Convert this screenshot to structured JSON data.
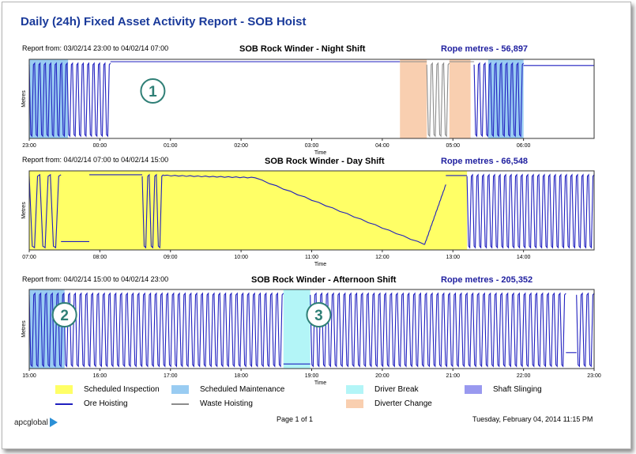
{
  "title": "Daily (24h) Fixed Asset Activity Report - SOB Hoist",
  "footer": {
    "page": "Page 1 of 1",
    "datetime": "Tuesday, February 04, 2014 11:15 PM",
    "logo": "apcglobal"
  },
  "legend": [
    {
      "label": "Scheduled Inspection",
      "kind": "fill",
      "color": "#ffff66"
    },
    {
      "label": "Scheduled Maintenance",
      "kind": "fill",
      "color": "#99ccf2"
    },
    {
      "label": "Driver Break",
      "kind": "fill",
      "color": "#b3f5f7"
    },
    {
      "label": "Shaft Slinging",
      "kind": "fill",
      "color": "#9999ef"
    },
    {
      "label": "Ore Hoisting",
      "kind": "line",
      "color": "#1f1fbf"
    },
    {
      "label": "Waste Hoisting",
      "kind": "line",
      "color": "#8c8c8c"
    },
    {
      "label": "Diverter Change",
      "kind": "fill",
      "color": "#f9cfb0"
    }
  ],
  "chart_data": [
    {
      "type": "line",
      "report_from": "Report from: 03/02/14 23:00 to 04/02/14 07:00",
      "title": "SOB Rock Winder - Night Shift",
      "rope_metres": "Rope metres - 56,897",
      "xlabel": "Time",
      "ylabel": "Metres",
      "xlim": [
        23,
        31
      ],
      "ylim": [
        0,
        1
      ],
      "x_ticks": [
        "23:00",
        "00:00",
        "01:00",
        "02:00",
        "03:00",
        "04:00",
        "05:00",
        "06:00"
      ],
      "annotation": "1",
      "bands": [
        {
          "type": "Scheduled Maintenance",
          "from": 23,
          "to": 23.55
        },
        {
          "type": "Diverter Change",
          "from": 28.25,
          "to": 28.63
        },
        {
          "type": "Diverter Change",
          "from": 28.95,
          "to": 29.25
        },
        {
          "type": "Scheduled Maintenance",
          "from": 29.5,
          "to": 30.0
        }
      ],
      "series": [
        {
          "name": "Ore Hoisting",
          "segments": [
            {
              "pattern": "cycles",
              "from": 23.0,
              "to": 24.15,
              "n": 15
            },
            {
              "pattern": "flat",
              "from": 24.15,
              "to": 28.25,
              "level": 1
            },
            {
              "pattern": "cycles",
              "from": 29.3,
              "to": 30.0,
              "n": 9
            },
            {
              "pattern": "flat",
              "from": 30.0,
              "to": 31.0,
              "level": 0.95
            }
          ]
        },
        {
          "name": "Waste Hoisting",
          "segments": [
            {
              "pattern": "flat",
              "from": 28.25,
              "to": 28.63,
              "level": 1
            },
            {
              "pattern": "cycles",
              "from": 28.63,
              "to": 28.95,
              "n": 4
            },
            {
              "pattern": "flat",
              "from": 28.95,
              "to": 29.3,
              "level": 1
            }
          ]
        }
      ]
    },
    {
      "type": "line",
      "report_from": "Report from: 04/02/14 07:00 to 04/02/14 15:00",
      "title": "SOB Rock Winder - Day Shift",
      "rope_metres": "Rope metres - 66,548",
      "xlabel": "Time",
      "ylabel": "Metres",
      "xlim": [
        7,
        15
      ],
      "ylim": [
        0,
        1
      ],
      "x_ticks": [
        "07:00",
        "08:00",
        "09:00",
        "10:00",
        "11:00",
        "12:00",
        "13:00",
        "14:00"
      ],
      "annotation": "",
      "bands": [
        {
          "type": "Scheduled Inspection",
          "from": 7.0,
          "to": 13.2
        }
      ],
      "series": [
        {
          "name": "Ore Hoisting",
          "segments": [
            {
              "pattern": "cycles",
              "from": 7.0,
              "to": 7.45,
              "n": 3
            },
            {
              "pattern": "flat",
              "from": 7.45,
              "to": 7.85,
              "level": 0.1
            },
            {
              "pattern": "flat",
              "from": 7.85,
              "to": 8.6,
              "level": 0.98
            },
            {
              "pattern": "cycles",
              "from": 8.6,
              "to": 8.9,
              "n": 3
            },
            {
              "pattern": "ramp",
              "from": 8.9,
              "to": 10.2,
              "levels": [
                0.97,
                0.94
              ]
            },
            {
              "pattern": "ramp",
              "from": 10.2,
              "to": 12.6,
              "levels": [
                0.94,
                0.06
              ]
            },
            {
              "pattern": "ramp",
              "from": 12.6,
              "to": 12.9,
              "levels": [
                0.06,
                0.85
              ]
            },
            {
              "pattern": "flat",
              "from": 12.9,
              "to": 13.2,
              "level": 0.97
            },
            {
              "pattern": "cycles",
              "from": 13.2,
              "to": 15.0,
              "n": 23
            }
          ]
        }
      ]
    },
    {
      "type": "line",
      "report_from": "Report from: 04/02/14 15:00 to 04/02/14 23:00",
      "title": "SOB Rock Winder - Afternoon Shift",
      "rope_metres": "Rope metres - 205,352",
      "xlabel": "Time",
      "ylabel": "Metres",
      "xlim": [
        15,
        23
      ],
      "ylim": [
        0,
        1
      ],
      "x_ticks": [
        "15:00",
        "16:00",
        "17:00",
        "18:00",
        "19:00",
        "20:00",
        "21:00",
        "22:00",
        "23:00"
      ],
      "annotation_left": "2",
      "annotation_right": "3",
      "bands": [
        {
          "type": "Scheduled Maintenance",
          "from": 15.0,
          "to": 15.5
        },
        {
          "type": "Driver Break",
          "from": 18.6,
          "to": 18.98
        }
      ],
      "series": [
        {
          "name": "Ore Hoisting",
          "segments": [
            {
              "pattern": "cycles",
              "from": 15.0,
              "to": 18.6,
              "n": 44
            },
            {
              "pattern": "flat",
              "from": 18.6,
              "to": 18.98,
              "level": 0.05
            },
            {
              "pattern": "cycles",
              "from": 18.98,
              "to": 22.6,
              "n": 44
            },
            {
              "pattern": "flat",
              "from": 22.6,
              "to": 22.75,
              "level": 0.2
            },
            {
              "pattern": "cycles",
              "from": 22.75,
              "to": 23.0,
              "n": 3
            }
          ]
        }
      ]
    }
  ]
}
